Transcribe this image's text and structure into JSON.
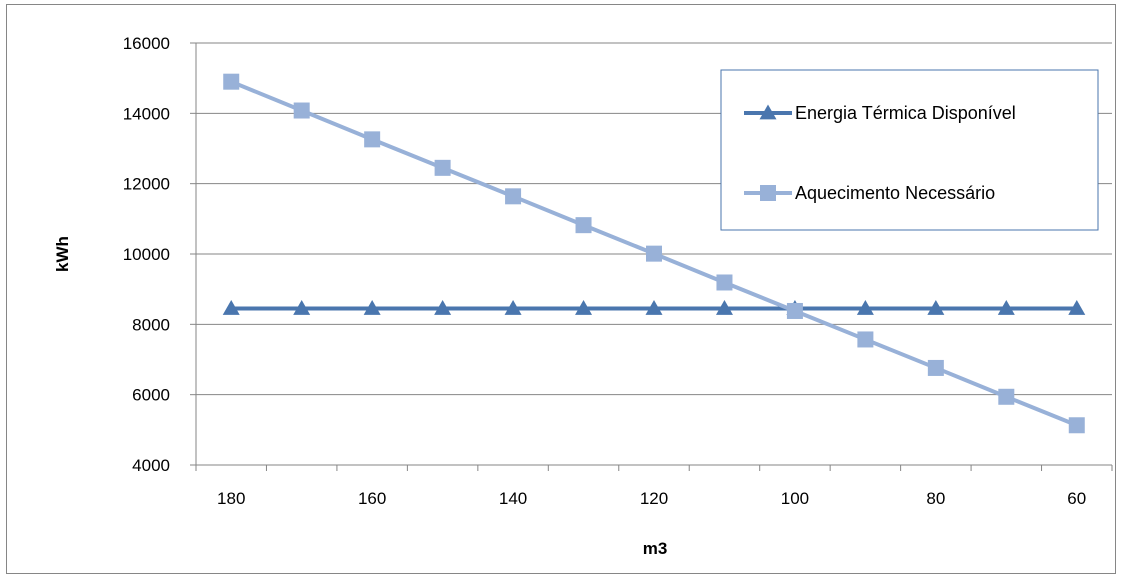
{
  "chart_data": {
    "type": "line",
    "title": "",
    "xlabel": "m3",
    "ylabel": "kWh",
    "categories": [
      "180",
      "170",
      "160",
      "150",
      "140",
      "130",
      "120",
      "110",
      "100",
      "90",
      "80",
      "70",
      "60"
    ],
    "x_tick_labels": [
      "180",
      "160",
      "140",
      "120",
      "100",
      "80",
      "60"
    ],
    "y_tick_labels": [
      "4000",
      "6000",
      "8000",
      "10000",
      "12000",
      "14000",
      "16000"
    ],
    "ylim": [
      4000,
      16000
    ],
    "grid": "horizontal",
    "legend_position": "top-right",
    "series": [
      {
        "name": "Energia Térmica Disponível",
        "marker": "triangle",
        "color": "#4a76ae",
        "values": [
          8450,
          8450,
          8450,
          8450,
          8450,
          8450,
          8450,
          8450,
          8450,
          8450,
          8450,
          8450,
          8450
        ]
      },
      {
        "name": "Aquecimento Necessário",
        "marker": "square",
        "color": "#98b1d8",
        "values": [
          14900,
          14080,
          13260,
          12450,
          11640,
          10820,
          10010,
          9190,
          8380,
          7570,
          6760,
          5940,
          5130
        ]
      }
    ]
  }
}
